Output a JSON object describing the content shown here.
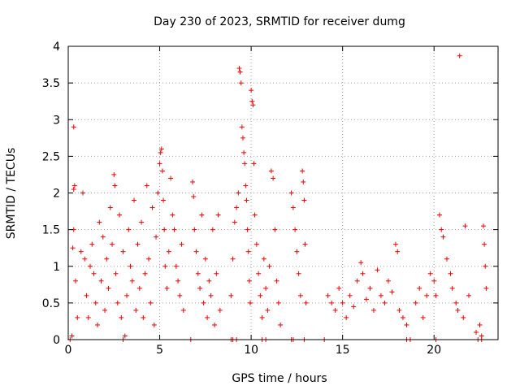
{
  "chart_data": {
    "type": "scatter",
    "title": "Day 230 of 2023, SRMTID for receiver dumg",
    "xlabel": "GPS time / hours",
    "ylabel": "SRMTID / TECUs",
    "xlim": [
      0,
      23.5
    ],
    "ylim": [
      0,
      4
    ],
    "xticks": [
      0,
      5,
      10,
      15,
      20
    ],
    "xtick_labels": [
      "0",
      "5",
      "10",
      "15",
      "20"
    ],
    "yticks": [
      0,
      0.5,
      1,
      1.5,
      2,
      2.5,
      3,
      3.5,
      4
    ],
    "ytick_labels": [
      "0",
      "0.5",
      "1",
      "1.5",
      "2",
      "2.5",
      "3",
      "3.5",
      "4"
    ],
    "grid": true,
    "marker": "plus",
    "color": "#ee0000",
    "series": [
      {
        "name": "SRMTID",
        "points": [
          [
            0.3,
            2.9
          ],
          [
            0.35,
            2.1
          ],
          [
            0.3,
            2.05
          ],
          [
            0.3,
            1.5
          ],
          [
            0.25,
            1.25
          ],
          [
            0.4,
            0.8
          ],
          [
            0.5,
            0.3
          ],
          [
            0.2,
            0.05
          ],
          [
            0.8,
            2.0
          ],
          [
            0.7,
            1.2
          ],
          [
            0.9,
            1.1
          ],
          [
            1.0,
            0.6
          ],
          [
            1.1,
            0.3
          ],
          [
            1.2,
            1.0
          ],
          [
            1.3,
            1.3
          ],
          [
            1.4,
            0.9
          ],
          [
            1.5,
            0.5
          ],
          [
            1.6,
            0.2
          ],
          [
            1.7,
            1.6
          ],
          [
            1.8,
            0.8
          ],
          [
            1.9,
            1.4
          ],
          [
            2.0,
            0.4
          ],
          [
            2.1,
            1.1
          ],
          [
            2.2,
            0.7
          ],
          [
            2.3,
            1.8
          ],
          [
            2.4,
            1.3
          ],
          [
            2.5,
            2.25
          ],
          [
            2.55,
            2.1
          ],
          [
            2.6,
            0.9
          ],
          [
            2.7,
            0.5
          ],
          [
            2.8,
            1.7
          ],
          [
            2.9,
            0.3
          ],
          [
            3.0,
            1.2
          ],
          [
            3.1,
            0.05
          ],
          [
            3.2,
            0.6
          ],
          [
            3.3,
            1.5
          ],
          [
            3.4,
            1.0
          ],
          [
            3.5,
            0.8
          ],
          [
            3.6,
            1.9
          ],
          [
            3.7,
            0.4
          ],
          [
            3.8,
            1.3
          ],
          [
            3.9,
            0.7
          ],
          [
            4.0,
            1.6
          ],
          [
            4.1,
            0.3
          ],
          [
            4.2,
            0.9
          ],
          [
            4.3,
            2.1
          ],
          [
            4.4,
            1.1
          ],
          [
            4.5,
            0.5
          ],
          [
            4.6,
            1.8
          ],
          [
            4.7,
            0.2
          ],
          [
            4.8,
            1.4
          ],
          [
            4.9,
            2.0
          ],
          [
            5.0,
            2.4
          ],
          [
            5.05,
            2.55
          ],
          [
            5.1,
            2.6
          ],
          [
            5.15,
            2.3
          ],
          [
            5.2,
            1.9
          ],
          [
            5.25,
            1.5
          ],
          [
            5.3,
            1.0
          ],
          [
            5.4,
            0.7
          ],
          [
            5.5,
            1.2
          ],
          [
            5.6,
            2.2
          ],
          [
            5.7,
            1.7
          ],
          [
            5.8,
            1.5
          ],
          [
            5.9,
            1.0
          ],
          [
            6.0,
            0.8
          ],
          [
            6.1,
            0.6
          ],
          [
            6.2,
            1.3
          ],
          [
            6.3,
            0.4
          ],
          [
            6.8,
            2.15
          ],
          [
            6.85,
            1.95
          ],
          [
            6.9,
            1.5
          ],
          [
            7.0,
            1.2
          ],
          [
            7.1,
            0.9
          ],
          [
            7.2,
            0.7
          ],
          [
            7.3,
            1.7
          ],
          [
            7.4,
            0.5
          ],
          [
            7.5,
            1.1
          ],
          [
            7.6,
            0.3
          ],
          [
            7.7,
            0.8
          ],
          [
            7.8,
            0.6
          ],
          [
            7.9,
            1.5
          ],
          [
            8.0,
            0.2
          ],
          [
            8.1,
            0.9
          ],
          [
            8.2,
            1.7
          ],
          [
            8.3,
            0.4
          ],
          [
            8.9,
            0.6
          ],
          [
            9.0,
            1.1
          ],
          [
            9.1,
            1.6
          ],
          [
            9.2,
            1.8
          ],
          [
            9.3,
            2.0
          ],
          [
            9.35,
            3.7
          ],
          [
            9.4,
            3.65
          ],
          [
            9.45,
            3.5
          ],
          [
            9.5,
            2.9
          ],
          [
            9.55,
            2.75
          ],
          [
            9.6,
            2.55
          ],
          [
            9.65,
            2.4
          ],
          [
            9.7,
            2.1
          ],
          [
            9.75,
            1.9
          ],
          [
            9.8,
            1.5
          ],
          [
            9.85,
            1.2
          ],
          [
            9.9,
            0.8
          ],
          [
            9.95,
            0.5
          ],
          [
            10.0,
            3.4
          ],
          [
            10.05,
            3.25
          ],
          [
            10.1,
            3.2
          ],
          [
            10.15,
            2.4
          ],
          [
            10.2,
            1.7
          ],
          [
            10.3,
            1.3
          ],
          [
            10.4,
            0.9
          ],
          [
            10.5,
            0.6
          ],
          [
            10.6,
            0.3
          ],
          [
            10.7,
            1.1
          ],
          [
            10.8,
            0.7
          ],
          [
            10.9,
            0.4
          ],
          [
            11.0,
            1.0
          ],
          [
            11.1,
            2.3
          ],
          [
            11.2,
            2.2
          ],
          [
            11.3,
            1.5
          ],
          [
            11.4,
            0.8
          ],
          [
            11.5,
            0.5
          ],
          [
            11.6,
            0.2
          ],
          [
            12.2,
            2.0
          ],
          [
            12.3,
            1.8
          ],
          [
            12.4,
            1.5
          ],
          [
            12.5,
            1.2
          ],
          [
            12.6,
            0.9
          ],
          [
            12.7,
            0.6
          ],
          [
            12.8,
            2.3
          ],
          [
            12.85,
            2.15
          ],
          [
            12.9,
            1.9
          ],
          [
            12.95,
            1.3
          ],
          [
            13.0,
            0.5
          ],
          [
            14.2,
            0.6
          ],
          [
            14.4,
            0.5
          ],
          [
            14.6,
            0.4
          ],
          [
            14.8,
            0.7
          ],
          [
            15.0,
            0.5
          ],
          [
            15.2,
            0.3
          ],
          [
            15.4,
            0.6
          ],
          [
            15.6,
            0.45
          ],
          [
            15.8,
            0.8
          ],
          [
            16.0,
            1.05
          ],
          [
            16.1,
            0.9
          ],
          [
            16.3,
            0.55
          ],
          [
            16.5,
            0.7
          ],
          [
            16.7,
            0.4
          ],
          [
            16.9,
            0.95
          ],
          [
            17.1,
            0.6
          ],
          [
            17.3,
            0.5
          ],
          [
            17.5,
            0.8
          ],
          [
            17.7,
            0.65
          ],
          [
            17.9,
            1.3
          ],
          [
            18.0,
            1.2
          ],
          [
            18.1,
            0.4
          ],
          [
            18.3,
            0.3
          ],
          [
            18.5,
            0.2
          ],
          [
            19.0,
            0.5
          ],
          [
            19.2,
            0.7
          ],
          [
            19.4,
            0.3
          ],
          [
            19.6,
            0.6
          ],
          [
            19.8,
            0.9
          ],
          [
            20.0,
            0.8
          ],
          [
            20.1,
            0.6
          ],
          [
            20.3,
            1.7
          ],
          [
            20.4,
            1.5
          ],
          [
            20.5,
            1.4
          ],
          [
            20.7,
            1.1
          ],
          [
            20.9,
            0.9
          ],
          [
            21.0,
            0.7
          ],
          [
            21.2,
            0.5
          ],
          [
            21.3,
            0.4
          ],
          [
            21.4,
            3.87
          ],
          [
            21.6,
            0.3
          ],
          [
            21.7,
            1.55
          ],
          [
            21.9,
            0.6
          ],
          [
            22.3,
            0.1
          ],
          [
            22.5,
            0.2
          ],
          [
            22.6,
            0.05
          ],
          [
            22.7,
            1.55
          ],
          [
            22.75,
            1.3
          ],
          [
            22.8,
            1.0
          ],
          [
            22.85,
            0.7
          ]
        ],
        "zero_points_x": [
          0.1,
          3.0,
          6.7,
          8.9,
          9.0,
          9.2,
          10.6,
          10.8,
          12.2,
          12.3,
          12.9,
          14.0,
          18.5,
          18.7,
          20.1,
          22.4,
          22.6
        ]
      }
    ]
  }
}
